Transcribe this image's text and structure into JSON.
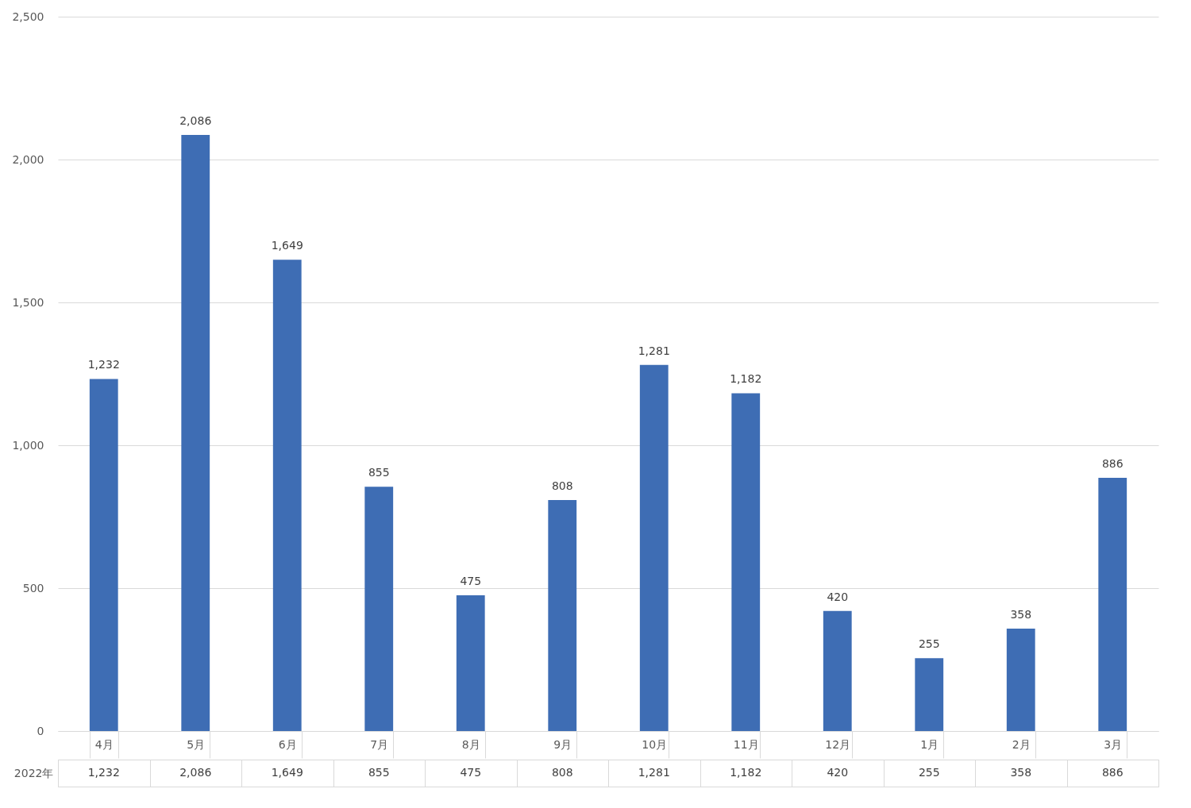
{
  "chart_data": {
    "type": "bar",
    "categories": [
      "4月",
      "5月",
      "6月",
      "7月",
      "8月",
      "9月",
      "10月",
      "11月",
      "12月",
      "1月",
      "2月",
      "3月"
    ],
    "series": [
      {
        "name": "2022年",
        "color": "#3e6db4",
        "values": [
          1232,
          2086,
          1649,
          855,
          475,
          808,
          1281,
          1182,
          420,
          255,
          358,
          886
        ],
        "value_labels": [
          "1,232",
          "2,086",
          "1,649",
          "855",
          "475",
          "808",
          "1,281",
          "1,182",
          "420",
          "255",
          "358",
          "886"
        ]
      }
    ],
    "ylim": [
      0,
      2500
    ],
    "yticks": [
      0,
      {
        "value": 500,
        "label": "500"
      },
      {
        "value": 1000,
        "label": "1,000"
      },
      {
        "value": 1500,
        "label": "1,500"
      },
      {
        "value": 2000,
        "label": "2,000"
      },
      {
        "value": 2500,
        "label": "2,500"
      }
    ],
    "grid": "y",
    "legend": false
  }
}
